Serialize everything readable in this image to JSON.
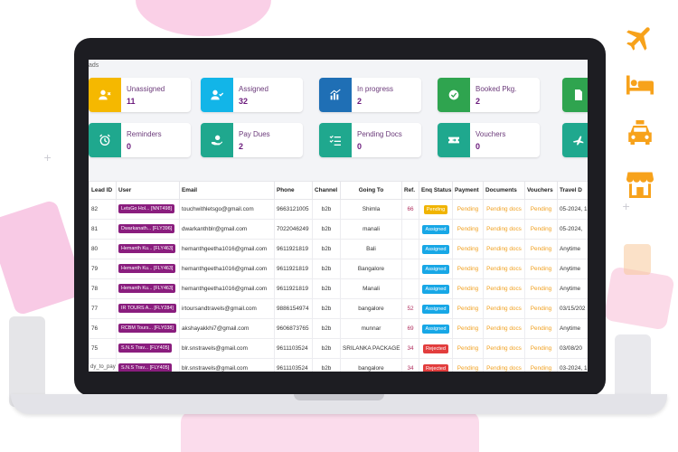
{
  "crumb": "ads",
  "cards": [
    {
      "label": "Unassigned",
      "value": "11",
      "color": "#f5b800",
      "icon": "user-x-icon"
    },
    {
      "label": "Assigned",
      "value": "32",
      "color": "#12b5e8",
      "icon": "user-check-icon"
    },
    {
      "label": "In progress",
      "value": "2",
      "color": "#1f6fb5",
      "icon": "chart-icon"
    },
    {
      "label": "Booked Pkg.",
      "value": "2",
      "color": "#2fa44f",
      "icon": "check-circle-icon"
    },
    {
      "label": "",
      "value": "",
      "color": "#2fa44f",
      "icon": "document-icon"
    },
    {
      "label": "Reminders",
      "value": "0",
      "color": "#1fa88e",
      "icon": "alarm-icon"
    },
    {
      "label": "Pay Dues",
      "value": "2",
      "color": "#1fa88e",
      "icon": "hand-money-icon"
    },
    {
      "label": "Pending Docs",
      "value": "0",
      "color": "#1fa88e",
      "icon": "list-check-icon"
    },
    {
      "label": "Vouchers",
      "value": "0",
      "color": "#1fa88e",
      "icon": "ticket-icon"
    },
    {
      "label": "",
      "value": "",
      "color": "#1fa88e",
      "icon": "plane-check-icon"
    }
  ],
  "table": {
    "headers": [
      "Lead ID",
      "User",
      "Email",
      "Phone",
      "Channel",
      "Going To",
      "Ref.",
      "Enq Status",
      "Payment",
      "Documents",
      "Vouchers",
      "Travel D"
    ],
    "rows": [
      {
        "id": "82",
        "user": "LetsGo Hol... [NNT498]",
        "email": "touchwithletsgo@gmail.com",
        "phone": "9663121005",
        "channel": "b2b",
        "going": "Shimla",
        "ref": "66",
        "status": "Pending",
        "payment": "Pending",
        "documents": "Pending docs",
        "vouchers": "Pending",
        "travel": "05-2024, 1"
      },
      {
        "id": "81",
        "user": "Dwarkanath... [FLY396]",
        "email": "dwarkanthblr@gmail.com",
        "phone": "7022046249",
        "channel": "b2b",
        "going": "manali",
        "ref": "",
        "status": "Assigned",
        "payment": "Pending",
        "documents": "Pending docs",
        "vouchers": "Pending",
        "travel": "05-2024,"
      },
      {
        "id": "80",
        "user": "Hemanth Ku... [FLY463]",
        "email": "hemanthgeetha1016@gmail.com",
        "phone": "9611921819",
        "channel": "b2b",
        "going": "Bali",
        "ref": "",
        "status": "Assigned",
        "payment": "Pending",
        "documents": "Pending docs",
        "vouchers": "Pending",
        "travel": "Anytime"
      },
      {
        "id": "79",
        "user": "Hemanth Ku... [FLY463]",
        "email": "hemanthgeetha1016@gmail.com",
        "phone": "9611921819",
        "channel": "b2b",
        "going": "Bangalore",
        "ref": "",
        "status": "Assigned",
        "payment": "Pending",
        "documents": "Pending docs",
        "vouchers": "Pending",
        "travel": "Anytime"
      },
      {
        "id": "78",
        "user": "Hemanth Ku... [FLY463]",
        "email": "hemanthgeetha1016@gmail.com",
        "phone": "9611921819",
        "channel": "b2b",
        "going": "Manali",
        "ref": "",
        "status": "Assigned",
        "payment": "Pending",
        "documents": "Pending docs",
        "vouchers": "Pending",
        "travel": "Anytime"
      },
      {
        "id": "77",
        "user": "IR TOURS A... [FLY284]",
        "email": "irtoursandtravels@gmail.com",
        "phone": "9886154974",
        "channel": "b2b",
        "going": "bangalore",
        "ref": "52",
        "status": "Assigned",
        "payment": "Pending",
        "documents": "Pending docs",
        "vouchers": "Pending",
        "travel": "03/15/202"
      },
      {
        "id": "76",
        "user": "RCBM Tours... [FLY038]",
        "email": "akshayakkhi7@gmail.com",
        "phone": "9606873765",
        "channel": "b2b",
        "going": "munnar",
        "ref": "69",
        "status": "Assigned",
        "payment": "Pending",
        "documents": "Pending docs",
        "vouchers": "Pending",
        "travel": "Anytime"
      },
      {
        "id": "75",
        "user": "S.N.S Trav... [FLY405]",
        "email": "blr.snstravels@gmail.com",
        "phone": "9611103524",
        "channel": "b2b",
        "going": "SRILANKA PACKAGE",
        "ref": "34",
        "status": "Rejected",
        "payment": "Pending",
        "documents": "Pending docs",
        "vouchers": "Pending",
        "travel": "03/08/20"
      },
      {
        "id": "74",
        "user": "S.N.S Trav... [FLY405]",
        "email": "blr.snstravels@gmail.com",
        "phone": "9611103524",
        "channel": "b2b",
        "going": "bangalore",
        "ref": "34",
        "status": "Rejected",
        "payment": "Pending",
        "documents": "Pending docs",
        "vouchers": "Pending",
        "travel": "03-2024, 1"
      }
    ]
  },
  "footer_text": "dy_to_pay",
  "side_icons": [
    "airplane-icon",
    "bed-icon",
    "taxi-icon",
    "shop-icon"
  ],
  "colors": {
    "brand": "#8a1d7e",
    "side_icon": "#f7a21b"
  }
}
